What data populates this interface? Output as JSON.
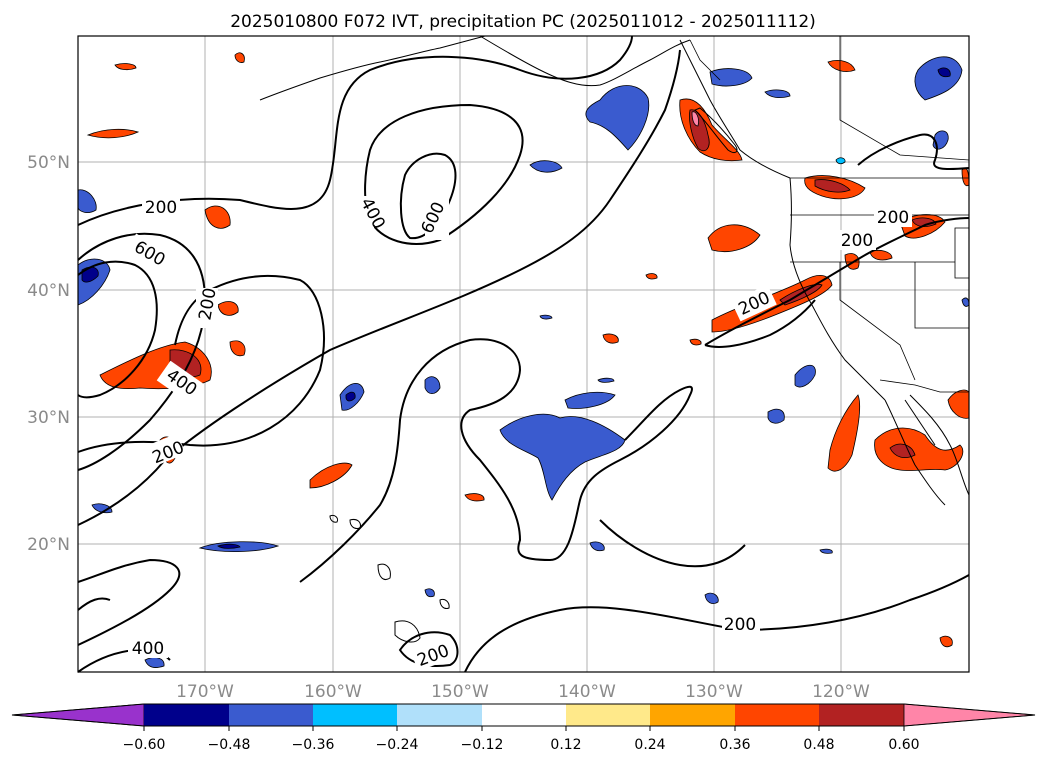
{
  "title": "2025010800 F072 IVT, precipitation PC (2025011012 - 2025011112)",
  "map": {
    "lat_ticks": [
      {
        "value": 50,
        "label": "50°N"
      },
      {
        "value": 40,
        "label": "40°N"
      },
      {
        "value": 30,
        "label": "30°N"
      },
      {
        "value": 20,
        "label": "20°N"
      }
    ],
    "lon_ticks": [
      {
        "value": -170,
        "label": "170°W"
      },
      {
        "value": -160,
        "label": "160°W"
      },
      {
        "value": -150,
        "label": "150°W"
      },
      {
        "value": -140,
        "label": "140°W"
      },
      {
        "value": -130,
        "label": "130°W"
      },
      {
        "value": -120,
        "label": "120°W"
      }
    ],
    "lon_range": [
      -180,
      -110
    ],
    "lat_range": [
      10,
      60
    ],
    "grid": true,
    "ivt_contour_labels": [
      "200",
      "200",
      "200",
      "200",
      "200",
      "200",
      "200",
      "200",
      "400",
      "400",
      "400",
      "600",
      "600"
    ]
  },
  "colorbar": {
    "ticks": [
      "−0.60",
      "−0.48",
      "−0.36",
      "−0.24",
      "−0.12",
      "0.12",
      "0.24",
      "0.36",
      "0.48",
      "0.60"
    ],
    "colors": [
      "#9932cc",
      "#00008b",
      "#3a5bcf",
      "#00bfff",
      "#b0e0fa",
      "#ffffff",
      "#ffe98a",
      "#ffa500",
      "#ff4500",
      "#b22222",
      "#ff85a8"
    ],
    "extend": "both"
  }
}
